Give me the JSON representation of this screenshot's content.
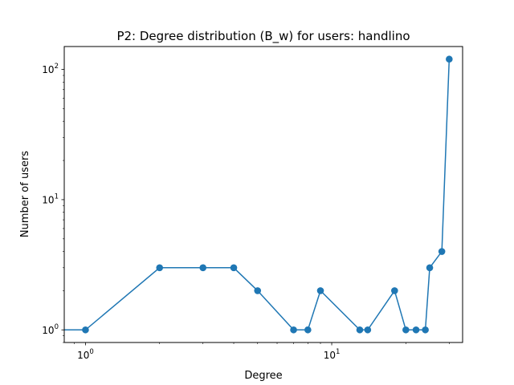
{
  "chart_data": {
    "type": "line",
    "title": "P2: Degree distribution (B_w) for users: handlino",
    "xlabel": "Degree",
    "ylabel": "Number of users",
    "xscale": "log",
    "yscale": "log",
    "xlim": [
      0.82,
      34
    ],
    "ylim": [
      0.8,
      150
    ],
    "grid": false,
    "color": "#1f77b4",
    "marker": "circle",
    "x_ticks": [
      {
        "value": 1,
        "base": "10",
        "exp": "0"
      },
      {
        "value": 10,
        "base": "10",
        "exp": "1"
      }
    ],
    "y_ticks": [
      {
        "value": 1,
        "base": "10",
        "exp": "0"
      },
      {
        "value": 10,
        "base": "10",
        "exp": "1"
      },
      {
        "value": 100,
        "base": "10",
        "exp": "2"
      }
    ],
    "series": [
      {
        "x": [
          0,
          1,
          2,
          3,
          4,
          5,
          7,
          8,
          9,
          13,
          14,
          18,
          20,
          22,
          24,
          25,
          28,
          30
        ],
        "y": [
          1,
          1,
          3,
          3,
          3,
          2,
          1,
          1,
          2,
          1,
          1,
          2,
          1,
          1,
          1,
          3,
          4,
          120
        ]
      }
    ]
  }
}
